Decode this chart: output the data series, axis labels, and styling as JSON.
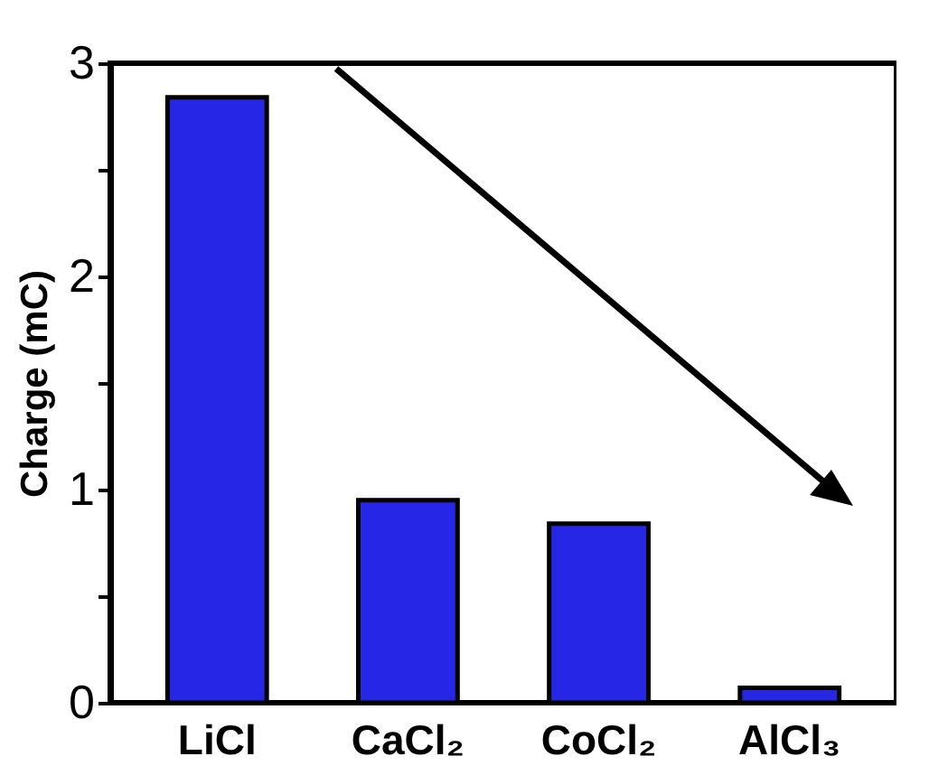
{
  "chart_data": {
    "type": "bar",
    "ylabel": "Charge (mC)",
    "categories": [
      "LiCl",
      "CaCl₂",
      "CoCl₂",
      "AlCl₃"
    ],
    "values": [
      2.84,
      0.95,
      0.84,
      0.07
    ],
    "color": "#2626e6",
    "ylim": [
      0,
      3
    ],
    "yticks": [
      0,
      {
        "value": 0.5,
        "label": null
      },
      1,
      {
        "value": 1.5,
        "label": null
      },
      2,
      {
        "value": 2.5,
        "label": null
      },
      3
    ],
    "grid": false
  }
}
